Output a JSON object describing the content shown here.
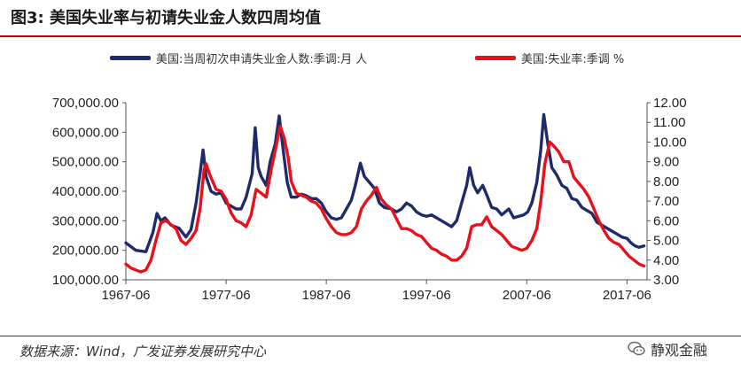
{
  "title": "图3:  美国失业率与初请失业金人数四周均值",
  "source": "数据来源：Wind，广发证券发展研究中心",
  "brand": "静观金融",
  "watermark": "",
  "colors": {
    "claims": "#1f2a6b",
    "unemployment": "#e8101b",
    "rule": "#c00000"
  },
  "chart_data": {
    "type": "line",
    "xlim": [
      1967.5,
      2019.5
    ],
    "x_ticks": [
      "1967-06",
      "1977-06",
      "1987-06",
      "1997-06",
      "2007-06",
      "2017-06"
    ],
    "x_tick_values": [
      1967.5,
      1977.5,
      1987.5,
      1997.5,
      2007.5,
      2017.5
    ],
    "y_left": {
      "min": 100000,
      "max": 700000,
      "ticks": [
        "100,000.00",
        "200,000.00",
        "300,000.00",
        "400,000.00",
        "500,000.00",
        "600,000.00",
        "700,000.00"
      ],
      "tick_values": [
        100000,
        200000,
        300000,
        400000,
        500000,
        600000,
        700000
      ]
    },
    "y_right": {
      "min": 3,
      "max": 12,
      "ticks": [
        "3.00",
        "4.00",
        "5.00",
        "6.00",
        "7.00",
        "8.00",
        "9.00",
        "10.00",
        "11.00",
        "12.00"
      ],
      "tick_values": [
        3,
        4,
        5,
        6,
        7,
        8,
        9,
        10,
        11,
        12
      ]
    },
    "series": [
      {
        "name": "美国:当周初次申请失业金人数:季调:月 人",
        "axis": "left",
        "points": [
          [
            1967.5,
            225000
          ],
          [
            1968.5,
            200000
          ],
          [
            1969.5,
            195000
          ],
          [
            1970.2,
            260000
          ],
          [
            1970.6,
            325000
          ],
          [
            1971.0,
            300000
          ],
          [
            1971.4,
            310000
          ],
          [
            1972.0,
            285000
          ],
          [
            1972.8,
            275000
          ],
          [
            1973.5,
            245000
          ],
          [
            1974.0,
            270000
          ],
          [
            1974.5,
            360000
          ],
          [
            1974.9,
            460000
          ],
          [
            1975.2,
            540000
          ],
          [
            1975.5,
            450000
          ],
          [
            1976.0,
            400000
          ],
          [
            1976.5,
            390000
          ],
          [
            1977.0,
            395000
          ],
          [
            1977.5,
            360000
          ],
          [
            1978.0,
            350000
          ],
          [
            1978.5,
            340000
          ],
          [
            1979.0,
            340000
          ],
          [
            1979.5,
            380000
          ],
          [
            1980.1,
            460000
          ],
          [
            1980.4,
            615000
          ],
          [
            1980.7,
            480000
          ],
          [
            1981.0,
            450000
          ],
          [
            1981.5,
            420000
          ],
          [
            1981.9,
            500000
          ],
          [
            1982.4,
            560000
          ],
          [
            1982.8,
            655000
          ],
          [
            1983.2,
            540000
          ],
          [
            1983.6,
            430000
          ],
          [
            1984.0,
            380000
          ],
          [
            1984.5,
            380000
          ],
          [
            1985.0,
            390000
          ],
          [
            1985.5,
            385000
          ],
          [
            1986.0,
            375000
          ],
          [
            1986.5,
            375000
          ],
          [
            1987.0,
            360000
          ],
          [
            1987.5,
            330000
          ],
          [
            1988.0,
            310000
          ],
          [
            1988.5,
            305000
          ],
          [
            1989.0,
            310000
          ],
          [
            1989.5,
            340000
          ],
          [
            1990.0,
            370000
          ],
          [
            1990.4,
            420000
          ],
          [
            1990.9,
            495000
          ],
          [
            1991.3,
            450000
          ],
          [
            1991.8,
            430000
          ],
          [
            1992.3,
            410000
          ],
          [
            1992.8,
            360000
          ],
          [
            1993.3,
            345000
          ],
          [
            1994.0,
            340000
          ],
          [
            1994.5,
            330000
          ],
          [
            1995.0,
            340000
          ],
          [
            1995.5,
            360000
          ],
          [
            1996.0,
            350000
          ],
          [
            1996.5,
            330000
          ],
          [
            1997.0,
            320000
          ],
          [
            1997.5,
            315000
          ],
          [
            1998.0,
            320000
          ],
          [
            1998.5,
            310000
          ],
          [
            1999.0,
            300000
          ],
          [
            1999.5,
            290000
          ],
          [
            2000.0,
            280000
          ],
          [
            2000.5,
            300000
          ],
          [
            2001.0,
            360000
          ],
          [
            2001.5,
            420000
          ],
          [
            2001.8,
            480000
          ],
          [
            2002.2,
            420000
          ],
          [
            2002.6,
            395000
          ],
          [
            2003.1,
            420000
          ],
          [
            2003.6,
            380000
          ],
          [
            2004.0,
            345000
          ],
          [
            2004.5,
            340000
          ],
          [
            2005.0,
            320000
          ],
          [
            2005.7,
            340000
          ],
          [
            2006.2,
            310000
          ],
          [
            2006.7,
            315000
          ],
          [
            2007.2,
            320000
          ],
          [
            2007.6,
            330000
          ],
          [
            2008.0,
            360000
          ],
          [
            2008.5,
            430000
          ],
          [
            2008.9,
            540000
          ],
          [
            2009.2,
            660000
          ],
          [
            2009.6,
            560000
          ],
          [
            2010.0,
            480000
          ],
          [
            2010.5,
            455000
          ],
          [
            2011.0,
            420000
          ],
          [
            2011.5,
            410000
          ],
          [
            2012.0,
            375000
          ],
          [
            2012.5,
            370000
          ],
          [
            2013.0,
            345000
          ],
          [
            2013.5,
            335000
          ],
          [
            2014.0,
            325000
          ],
          [
            2014.5,
            295000
          ],
          [
            2015.0,
            285000
          ],
          [
            2015.5,
            275000
          ],
          [
            2016.0,
            265000
          ],
          [
            2016.5,
            255000
          ],
          [
            2017.0,
            245000
          ],
          [
            2017.5,
            240000
          ],
          [
            2017.9,
            225000
          ],
          [
            2018.3,
            215000
          ],
          [
            2018.7,
            210000
          ],
          [
            2019.2,
            215000
          ]
        ]
      },
      {
        "name": "美国:失业率:季调 %",
        "axis": "right",
        "points": [
          [
            1967.5,
            3.8
          ],
          [
            1968.0,
            3.6
          ],
          [
            1968.5,
            3.5
          ],
          [
            1969.0,
            3.4
          ],
          [
            1969.5,
            3.5
          ],
          [
            1970.0,
            4.0
          ],
          [
            1970.5,
            5.0
          ],
          [
            1971.0,
            5.9
          ],
          [
            1971.5,
            6.0
          ],
          [
            1972.0,
            5.8
          ],
          [
            1972.5,
            5.6
          ],
          [
            1973.0,
            5.0
          ],
          [
            1973.5,
            4.8
          ],
          [
            1974.0,
            5.1
          ],
          [
            1974.5,
            5.5
          ],
          [
            1974.9,
            6.6
          ],
          [
            1975.3,
            8.6
          ],
          [
            1975.5,
            8.9
          ],
          [
            1975.9,
            8.3
          ],
          [
            1976.5,
            7.6
          ],
          [
            1977.0,
            7.5
          ],
          [
            1977.5,
            7.1
          ],
          [
            1978.0,
            6.4
          ],
          [
            1978.5,
            6.0
          ],
          [
            1979.0,
            5.9
          ],
          [
            1979.5,
            5.7
          ],
          [
            1980.0,
            6.3
          ],
          [
            1980.5,
            7.6
          ],
          [
            1981.0,
            7.4
          ],
          [
            1981.5,
            7.2
          ],
          [
            1982.0,
            8.6
          ],
          [
            1982.5,
            9.8
          ],
          [
            1982.9,
            10.8
          ],
          [
            1983.3,
            10.2
          ],
          [
            1983.7,
            9.2
          ],
          [
            1984.0,
            8.0
          ],
          [
            1984.5,
            7.4
          ],
          [
            1985.0,
            7.3
          ],
          [
            1985.5,
            7.2
          ],
          [
            1986.0,
            7.0
          ],
          [
            1986.5,
            6.9
          ],
          [
            1987.0,
            6.6
          ],
          [
            1987.5,
            6.1
          ],
          [
            1988.0,
            5.7
          ],
          [
            1988.5,
            5.4
          ],
          [
            1989.0,
            5.3
          ],
          [
            1989.5,
            5.3
          ],
          [
            1990.0,
            5.4
          ],
          [
            1990.5,
            5.7
          ],
          [
            1991.0,
            6.6
          ],
          [
            1991.5,
            7.0
          ],
          [
            1992.0,
            7.3
          ],
          [
            1992.5,
            7.7
          ],
          [
            1993.0,
            7.1
          ],
          [
            1993.5,
            6.8
          ],
          [
            1994.0,
            6.6
          ],
          [
            1994.5,
            6.1
          ],
          [
            1995.0,
            5.6
          ],
          [
            1995.5,
            5.6
          ],
          [
            1996.0,
            5.5
          ],
          [
            1996.5,
            5.3
          ],
          [
            1997.0,
            5.2
          ],
          [
            1997.5,
            4.9
          ],
          [
            1998.0,
            4.6
          ],
          [
            1998.5,
            4.5
          ],
          [
            1999.0,
            4.3
          ],
          [
            1999.5,
            4.2
          ],
          [
            2000.0,
            4.0
          ],
          [
            2000.5,
            4.0
          ],
          [
            2001.0,
            4.2
          ],
          [
            2001.5,
            4.6
          ],
          [
            2002.0,
            5.7
          ],
          [
            2002.5,
            5.8
          ],
          [
            2003.0,
            5.8
          ],
          [
            2003.5,
            6.2
          ],
          [
            2004.0,
            5.7
          ],
          [
            2004.5,
            5.5
          ],
          [
            2005.0,
            5.3
          ],
          [
            2005.5,
            5.0
          ],
          [
            2006.0,
            4.7
          ],
          [
            2006.5,
            4.6
          ],
          [
            2007.0,
            4.5
          ],
          [
            2007.5,
            4.6
          ],
          [
            2008.0,
            5.0
          ],
          [
            2008.5,
            5.6
          ],
          [
            2008.9,
            7.0
          ],
          [
            2009.3,
            8.9
          ],
          [
            2009.8,
            10.0
          ],
          [
            2010.2,
            9.8
          ],
          [
            2010.7,
            9.5
          ],
          [
            2011.2,
            9.0
          ],
          [
            2011.7,
            9.0
          ],
          [
            2012.2,
            8.2
          ],
          [
            2012.7,
            7.9
          ],
          [
            2013.2,
            7.6
          ],
          [
            2013.7,
            7.2
          ],
          [
            2014.2,
            6.6
          ],
          [
            2014.7,
            6.0
          ],
          [
            2015.2,
            5.5
          ],
          [
            2015.7,
            5.1
          ],
          [
            2016.2,
            4.9
          ],
          [
            2016.7,
            4.8
          ],
          [
            2017.2,
            4.5
          ],
          [
            2017.7,
            4.2
          ],
          [
            2018.2,
            4.0
          ],
          [
            2018.7,
            3.8
          ],
          [
            2019.2,
            3.7
          ]
        ]
      }
    ]
  }
}
